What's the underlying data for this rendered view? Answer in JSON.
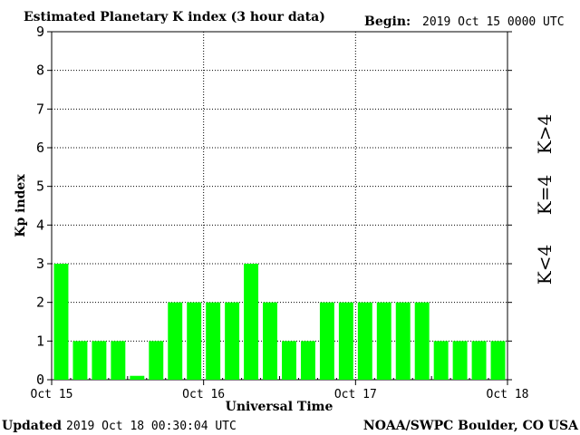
{
  "header": {
    "title": "Estimated Planetary K index (3 hour data)",
    "begin_label": "Begin:",
    "begin_value": "2019 Oct 15 0000 UTC"
  },
  "footer": {
    "updated_label": "Updated",
    "updated_value": "2019 Oct 18 00:30:04 UTC",
    "source": "NOAA/SWPC Boulder, CO USA"
  },
  "legend": {
    "low": "K<4",
    "mid": "K=4",
    "high": "K>4"
  },
  "colors": {
    "bar_low": "#00ff00",
    "bar_mid": "#ffd700",
    "bar_high": "#ff3300",
    "legend_low": "#33dd33",
    "legend_mid": "#ffcc00",
    "legend_high": "#ee3311"
  },
  "chart_data": {
    "type": "bar",
    "xlabel": "Universal Time",
    "ylabel": "Kp index",
    "ylim": [
      0,
      9
    ],
    "yticks": [
      "0",
      "1",
      "2",
      "3",
      "4",
      "5",
      "6",
      "7",
      "8",
      "9"
    ],
    "xticks": [
      "Oct 15",
      "Oct 16",
      "Oct 17",
      "Oct 18"
    ],
    "grid": true,
    "values": [
      3,
      1,
      1,
      1,
      0.1,
      1,
      2,
      2,
      2,
      2,
      3,
      2,
      1,
      1,
      2,
      2,
      2,
      2,
      2,
      2,
      1,
      1,
      1,
      1
    ]
  }
}
